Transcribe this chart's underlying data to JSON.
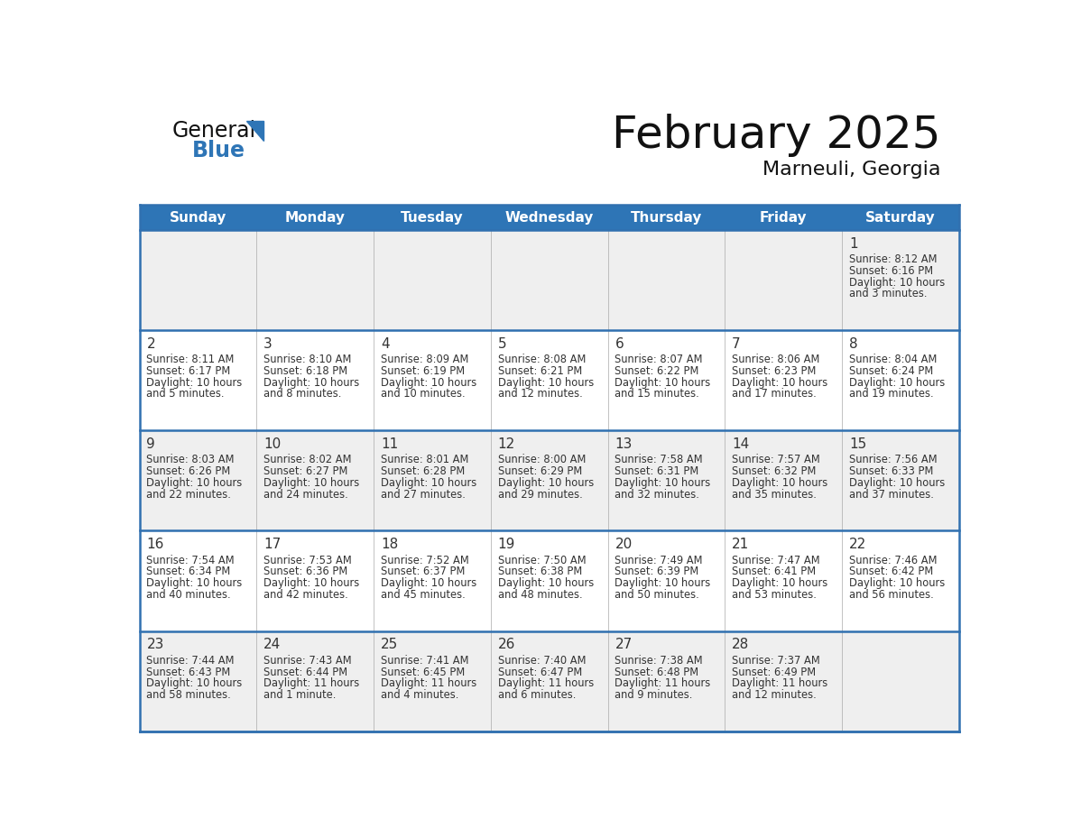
{
  "title": "February 2025",
  "subtitle": "Marneuli, Georgia",
  "header_bg": "#2E75B6",
  "header_text_color": "#FFFFFF",
  "days_of_week": [
    "Sunday",
    "Monday",
    "Tuesday",
    "Wednesday",
    "Thursday",
    "Friday",
    "Saturday"
  ],
  "cell_bg_white": "#FFFFFF",
  "cell_bg_gray": "#EFEFEF",
  "cell_border_color": "#3070B0",
  "day_num_color": "#333333",
  "info_text_color": "#333333",
  "calendar_data": [
    [
      null,
      null,
      null,
      null,
      null,
      null,
      {
        "day": "1",
        "sunrise": "8:12 AM",
        "sunset": "6:16 PM",
        "daylight": "10 hours and 3 minutes."
      }
    ],
    [
      {
        "day": "2",
        "sunrise": "8:11 AM",
        "sunset": "6:17 PM",
        "daylight": "10 hours and 5 minutes."
      },
      {
        "day": "3",
        "sunrise": "8:10 AM",
        "sunset": "6:18 PM",
        "daylight": "10 hours and 8 minutes."
      },
      {
        "day": "4",
        "sunrise": "8:09 AM",
        "sunset": "6:19 PM",
        "daylight": "10 hours and 10 minutes."
      },
      {
        "day": "5",
        "sunrise": "8:08 AM",
        "sunset": "6:21 PM",
        "daylight": "10 hours and 12 minutes."
      },
      {
        "day": "6",
        "sunrise": "8:07 AM",
        "sunset": "6:22 PM",
        "daylight": "10 hours and 15 minutes."
      },
      {
        "day": "7",
        "sunrise": "8:06 AM",
        "sunset": "6:23 PM",
        "daylight": "10 hours and 17 minutes."
      },
      {
        "day": "8",
        "sunrise": "8:04 AM",
        "sunset": "6:24 PM",
        "daylight": "10 hours and 19 minutes."
      }
    ],
    [
      {
        "day": "9",
        "sunrise": "8:03 AM",
        "sunset": "6:26 PM",
        "daylight": "10 hours and 22 minutes."
      },
      {
        "day": "10",
        "sunrise": "8:02 AM",
        "sunset": "6:27 PM",
        "daylight": "10 hours and 24 minutes."
      },
      {
        "day": "11",
        "sunrise": "8:01 AM",
        "sunset": "6:28 PM",
        "daylight": "10 hours and 27 minutes."
      },
      {
        "day": "12",
        "sunrise": "8:00 AM",
        "sunset": "6:29 PM",
        "daylight": "10 hours and 29 minutes."
      },
      {
        "day": "13",
        "sunrise": "7:58 AM",
        "sunset": "6:31 PM",
        "daylight": "10 hours and 32 minutes."
      },
      {
        "day": "14",
        "sunrise": "7:57 AM",
        "sunset": "6:32 PM",
        "daylight": "10 hours and 35 minutes."
      },
      {
        "day": "15",
        "sunrise": "7:56 AM",
        "sunset": "6:33 PM",
        "daylight": "10 hours and 37 minutes."
      }
    ],
    [
      {
        "day": "16",
        "sunrise": "7:54 AM",
        "sunset": "6:34 PM",
        "daylight": "10 hours and 40 minutes."
      },
      {
        "day": "17",
        "sunrise": "7:53 AM",
        "sunset": "6:36 PM",
        "daylight": "10 hours and 42 minutes."
      },
      {
        "day": "18",
        "sunrise": "7:52 AM",
        "sunset": "6:37 PM",
        "daylight": "10 hours and 45 minutes."
      },
      {
        "day": "19",
        "sunrise": "7:50 AM",
        "sunset": "6:38 PM",
        "daylight": "10 hours and 48 minutes."
      },
      {
        "day": "20",
        "sunrise": "7:49 AM",
        "sunset": "6:39 PM",
        "daylight": "10 hours and 50 minutes."
      },
      {
        "day": "21",
        "sunrise": "7:47 AM",
        "sunset": "6:41 PM",
        "daylight": "10 hours and 53 minutes."
      },
      {
        "day": "22",
        "sunrise": "7:46 AM",
        "sunset": "6:42 PM",
        "daylight": "10 hours and 56 minutes."
      }
    ],
    [
      {
        "day": "23",
        "sunrise": "7:44 AM",
        "sunset": "6:43 PM",
        "daylight": "10 hours and 58 minutes."
      },
      {
        "day": "24",
        "sunrise": "7:43 AM",
        "sunset": "6:44 PM",
        "daylight": "11 hours and 1 minute."
      },
      {
        "day": "25",
        "sunrise": "7:41 AM",
        "sunset": "6:45 PM",
        "daylight": "11 hours and 4 minutes."
      },
      {
        "day": "26",
        "sunrise": "7:40 AM",
        "sunset": "6:47 PM",
        "daylight": "11 hours and 6 minutes."
      },
      {
        "day": "27",
        "sunrise": "7:38 AM",
        "sunset": "6:48 PM",
        "daylight": "11 hours and 9 minutes."
      },
      {
        "day": "28",
        "sunrise": "7:37 AM",
        "sunset": "6:49 PM",
        "daylight": "11 hours and 12 minutes."
      },
      null
    ]
  ],
  "logo_general_color": "#111111",
  "logo_blue_color": "#2E75B6",
  "logo_triangle_color": "#2E75B6"
}
